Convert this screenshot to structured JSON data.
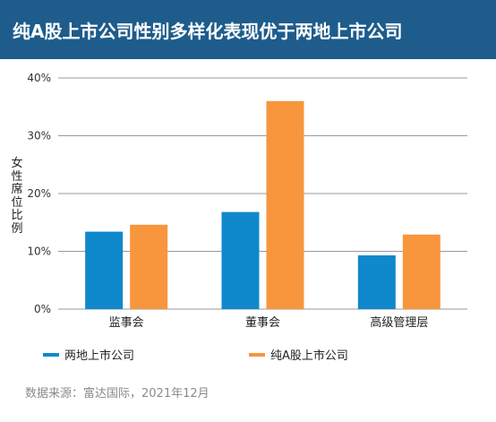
{
  "header": {
    "title": "纯A股上市公司性别多样化表现优于两地上市公司"
  },
  "chart_data": {
    "type": "bar",
    "categories": [
      "监事会",
      "董事会",
      "高级管理层"
    ],
    "series": [
      {
        "name": "两地上市公司",
        "color": "#0f88cc",
        "values": [
          13.4,
          16.8,
          9.3
        ]
      },
      {
        "name": "纯A股上市公司",
        "color": "#f7963c",
        "values": [
          14.6,
          36.0,
          12.9
        ]
      }
    ],
    "ylabel": "女性席位比例",
    "ylim": [
      0,
      40
    ],
    "yticks": [
      0,
      10,
      20,
      30,
      40
    ],
    "ytick_labels": [
      "0%",
      "10%",
      "20%",
      "30%",
      "40%"
    ],
    "grid": true,
    "legend": "bottom"
  },
  "source": "数据来源：富达国际，2021年12月"
}
